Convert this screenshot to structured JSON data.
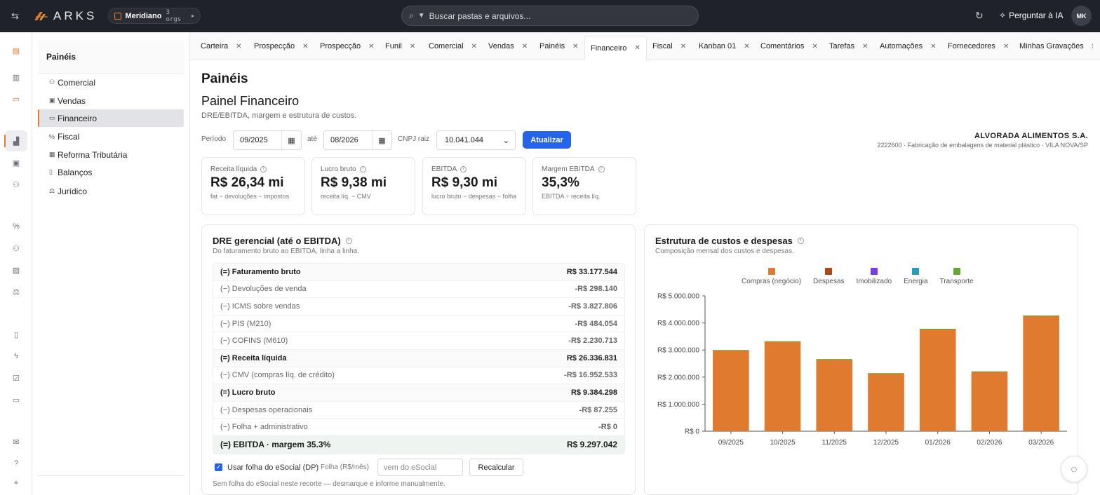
{
  "topbar": {
    "logo_text": "ARKS",
    "org_name": "Meridiano",
    "org_count": "3 orgs",
    "search_placeholder": "Buscar pastas e arquivos...",
    "ask_ai_label": "Perguntar à IA",
    "avatar_initials": "MK"
  },
  "leftnav": {
    "title": "Painéis",
    "items": [
      {
        "label": "Comercial",
        "icon": "users-icon"
      },
      {
        "label": "Vendas",
        "icon": "cart-icon"
      },
      {
        "label": "Financeiro",
        "icon": "money-icon"
      },
      {
        "label": "Fiscal",
        "icon": "percent-icon"
      },
      {
        "label": "Reforma Tributária",
        "icon": "grid-icon"
      },
      {
        "label": "Balanços",
        "icon": "document-icon"
      },
      {
        "label": "Jurídico",
        "icon": "scale-icon"
      }
    ]
  },
  "tabs": [
    {
      "label": "Carteira"
    },
    {
      "label": "Prospecção"
    },
    {
      "label": "Prospecção"
    },
    {
      "label": "Funil"
    },
    {
      "label": "Comercial"
    },
    {
      "label": "Vendas"
    },
    {
      "label": "Painéis"
    },
    {
      "label": "Financeiro"
    },
    {
      "label": "Fiscal"
    },
    {
      "label": "Kanban 01"
    },
    {
      "label": "Comentários"
    },
    {
      "label": "Tarefas"
    },
    {
      "label": "Automações"
    },
    {
      "label": "Fornecedores"
    },
    {
      "label": "Minhas Gravações"
    }
  ],
  "page": {
    "title": "Painéis",
    "panel_title": "Painel Financeiro",
    "panel_subtitle": "DRE/EBITDA, margem e estrutura de custos."
  },
  "filters": {
    "period_label": "Período",
    "from_value": "09/2025",
    "until_label": "até",
    "to_value": "08/2026",
    "cnpj_label": "CNPJ raiz",
    "cnpj_value": "10.041.044",
    "update_button": "Atualizar"
  },
  "company": {
    "name": "ALVORADA ALIMENTOS S.A.",
    "info": "2222600 · Fabricação de embalagens de material plástico · VILA NOVA/SP"
  },
  "kpis": [
    {
      "label": "Receita líquida",
      "value": "R$ 26,34 mi",
      "note": "fat − devoluções − impostos"
    },
    {
      "label": "Lucro bruto",
      "value": "R$ 9,38 mi",
      "note": "receita líq. − CMV"
    },
    {
      "label": "EBITDA",
      "value": "R$ 9,30 mi",
      "note": "lucro bruto − despesas − folha"
    },
    {
      "label": "Margem EBITDA",
      "value": "35,3%",
      "note": "EBITDA ÷ receita líq."
    }
  ],
  "dre": {
    "title": "DRE gerencial (até o EBITDA)",
    "subtitle": "Do faturamento bruto ao EBITDA, linha a linha.",
    "rows": [
      {
        "label": "(=) Faturamento bruto",
        "value": "R$ 33.177.544",
        "kind": "total"
      },
      {
        "label": "(−) Devoluções de venda",
        "value": "-R$ 298.140",
        "kind": "line"
      },
      {
        "label": "(−) ICMS sobre vendas",
        "value": "-R$ 3.827.806",
        "kind": "line"
      },
      {
        "label": "(−) PIS (M210)",
        "value": "-R$ 484.054",
        "kind": "line"
      },
      {
        "label": "(−) COFINS (M610)",
        "value": "-R$ 2.230.713",
        "kind": "line"
      },
      {
        "label": "(=) Receita líquida",
        "value": "R$ 26.336.831",
        "kind": "total"
      },
      {
        "label": "(−) CMV (compras líq. de crédito)",
        "value": "-R$ 16.952.533",
        "kind": "line"
      },
      {
        "label": "(=) Lucro bruto",
        "value": "R$ 9.384.298",
        "kind": "total"
      },
      {
        "label": "(−) Despesas operacionais",
        "value": "-R$ 87.255",
        "kind": "line"
      },
      {
        "label": "(−) Folha + administrativo",
        "value": "-R$ 0",
        "kind": "line"
      },
      {
        "label": "(=) EBITDA · margem 35.3%",
        "value": "R$ 9.297.042",
        "kind": "ebitda"
      }
    ],
    "checkbox_label": "Usar folha do eSocial (DP)",
    "checkbox_checked": true,
    "folha_label": "Folha (R$/mês)",
    "folha_placeholder": "vem do eSocial",
    "recalc_button": "Recalcular",
    "note": "Sem folha do eSocial neste recorte — desmarque e informe manualmente."
  },
  "costs": {
    "title": "Estrutura de custos e despesas",
    "subtitle": "Composição mensal dos custos e despesas."
  },
  "chart_data": {
    "type": "bar",
    "stacked": true,
    "title": "Estrutura de custos e despesas",
    "categories": [
      "09/2025",
      "10/2025",
      "11/2025",
      "12/2025",
      "01/2026",
      "02/2026",
      "03/2026"
    ],
    "series": [
      {
        "name": "Compras (negócio)",
        "color": "#e07a2e",
        "values": [
          2980000,
          3300000,
          2650000,
          2130000,
          3770000,
          2190000,
          4250000
        ]
      },
      {
        "name": "Despesas",
        "color": "#a84a16",
        "values": [
          0,
          0,
          0,
          0,
          0,
          0,
          0
        ]
      },
      {
        "name": "Imobilizado",
        "color": "#7c3aed",
        "values": [
          0,
          0,
          0,
          0,
          0,
          0,
          0
        ]
      },
      {
        "name": "Energia",
        "color": "#2a9bb8",
        "values": [
          0,
          0,
          0,
          0,
          0,
          0,
          0
        ]
      },
      {
        "name": "Transporte",
        "color": "#65a830",
        "values": [
          20000,
          25000,
          15000,
          15000,
          15000,
          20000,
          25000
        ]
      }
    ],
    "yticks": [
      "R$ 0",
      "R$ 1.000.000",
      "R$ 2.000.000",
      "R$ 3.000.000",
      "R$ 4.000.000",
      "R$ 5.000.000"
    ],
    "ylim": [
      0,
      5000000
    ],
    "legend_position": "top",
    "grid": false
  }
}
